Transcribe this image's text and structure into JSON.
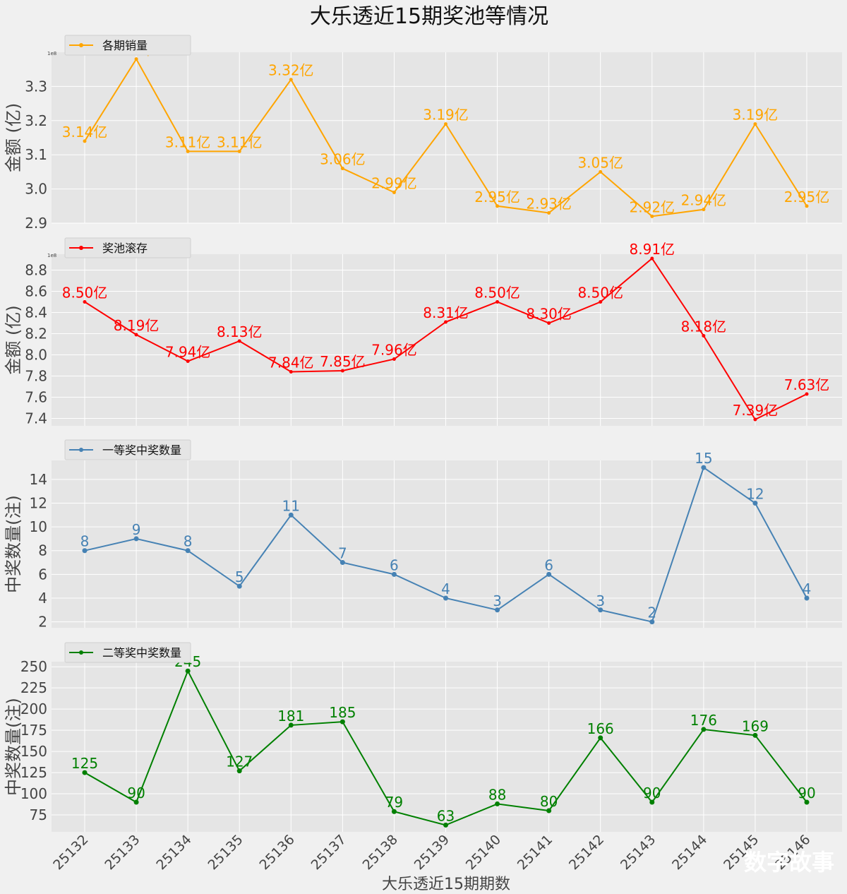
{
  "chart_data": {
    "title": "大乐透近15期奖池等情况",
    "xlabel": "大乐透近15期期数",
    "categories": [
      "25132",
      "25133",
      "25134",
      "25135",
      "25136",
      "25137",
      "25138",
      "25139",
      "25140",
      "25141",
      "25142",
      "25143",
      "25144",
      "25145",
      "25146"
    ],
    "panels": [
      {
        "type": "line",
        "legend": "各期销量",
        "ylabel": "金额 (亿)",
        "color": "#ffa500",
        "unit_label": "亿",
        "decimals": 2,
        "offset_text": "1e8",
        "ylim": [
          2.9,
          3.4
        ],
        "yticks": [
          2.9,
          3.0,
          3.1,
          3.2,
          3.3
        ],
        "values": [
          3.14,
          3.38,
          3.11,
          3.11,
          3.32,
          3.06,
          2.99,
          3.19,
          2.95,
          2.93,
          3.05,
          2.92,
          2.94,
          3.19,
          2.95
        ]
      },
      {
        "type": "line",
        "legend": "奖池滚存",
        "ylabel": "金额 (亿)",
        "color": "#ff0000",
        "unit_label": "亿",
        "decimals": 2,
        "offset_text": "1e8",
        "ylim": [
          7.33,
          8.95
        ],
        "yticks": [
          7.4,
          7.6,
          7.8,
          8.0,
          8.2,
          8.4,
          8.6,
          8.8
        ],
        "values": [
          8.5,
          8.19,
          7.94,
          8.13,
          7.84,
          7.85,
          7.96,
          8.31,
          8.5,
          8.3,
          8.5,
          8.91,
          8.18,
          7.39,
          7.63
        ]
      },
      {
        "type": "line",
        "legend": "一等奖中奖数量",
        "ylabel": "中奖数量(注)",
        "color": "#4682b4",
        "unit_label": "",
        "decimals": 0,
        "offset_text": "",
        "ylim": [
          1.5,
          15.6
        ],
        "yticks": [
          2,
          4,
          6,
          8,
          10,
          12,
          14
        ],
        "values": [
          8,
          9,
          8,
          5,
          11,
          7,
          6,
          4,
          3,
          6,
          3,
          2,
          15,
          12,
          4
        ]
      },
      {
        "type": "line",
        "legend": "二等奖中奖数量",
        "ylabel": "中奖数量(注)",
        "color": "#008000",
        "unit_label": "",
        "decimals": 0,
        "offset_text": "",
        "ylim": [
          55,
          256
        ],
        "yticks": [
          75,
          100,
          125,
          150,
          175,
          200,
          225,
          250
        ],
        "values": [
          125,
          90,
          245,
          127,
          181,
          185,
          79,
          63,
          88,
          80,
          166,
          90,
          176,
          169,
          90
        ]
      }
    ]
  },
  "watermark": "数字故事"
}
